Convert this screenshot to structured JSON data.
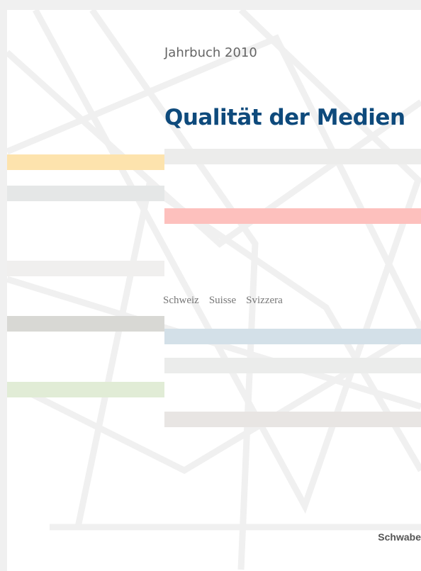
{
  "cover": {
    "kicker": "Jahrbuch 2010",
    "title": "Qualität der Medien",
    "languages": [
      "Schweiz",
      "Suisse",
      "Svizzera"
    ],
    "publisher": "Schwabe"
  }
}
